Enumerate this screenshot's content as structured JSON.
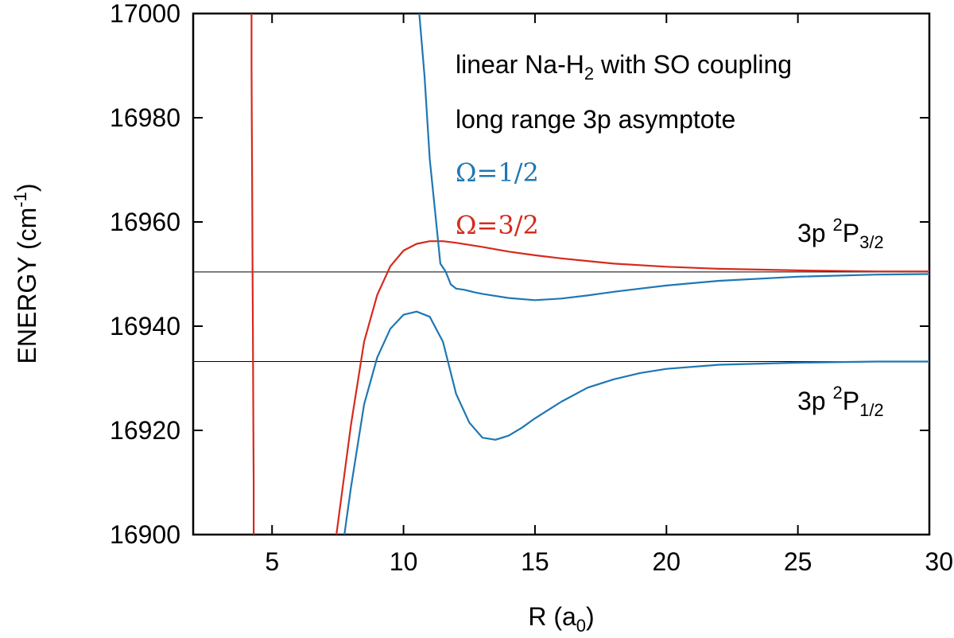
{
  "chart_data": {
    "type": "line",
    "title": "",
    "xlabel": "R (a",
    "xlabel_sub": "0",
    "xlabel_end": ")",
    "ylabel": "ENERGY (cm",
    "ylabel_sup": "-1",
    "ylabel_end": ")",
    "xlim": [
      2,
      30
    ],
    "ylim": [
      16900,
      17000
    ],
    "xticks": [
      5,
      10,
      15,
      20,
      25,
      30
    ],
    "yticks": [
      16900,
      16920,
      16940,
      16960,
      16980,
      17000
    ],
    "annotations": {
      "line1_a": "linear Na-H",
      "line1_sub": "2",
      "line1_b": " with SO coupling",
      "line2": "long range 3p asymptote",
      "omega_half": "Ω=1/2",
      "omega_threehalf": "Ω=3/2",
      "p32_a": "3p ",
      "p32_sup": "2",
      "p32_b": "P",
      "p32_sub": "3/2",
      "p12_a": "3p ",
      "p12_sup": "2",
      "p12_b": "P",
      "p12_sub": "1/2"
    },
    "reference_lines": [
      {
        "name": "3p 2P3/2 asymptote",
        "y": 16950.4,
        "color": "#000000"
      },
      {
        "name": "3p 2P1/2 asymptote",
        "y": 16933.2,
        "color": "#000000"
      }
    ],
    "series": [
      {
        "name": "Omega=3/2 repulsive wall",
        "color": "#d62a1e",
        "x": [
          4.22,
          4.22,
          4.23,
          4.24,
          4.25,
          4.26,
          4.27,
          4.28,
          4.29,
          4.3,
          4.3
        ],
        "y": [
          17000,
          16990,
          16980,
          16970,
          16960,
          16950,
          16940,
          16930,
          16920,
          16910,
          16900
        ]
      },
      {
        "name": "Omega=3/2",
        "color": "#d62a1e",
        "x": [
          7.45,
          7.5,
          8.0,
          8.5,
          9.0,
          9.5,
          10.0,
          10.5,
          11.0,
          11.5,
          12.0,
          13.0,
          14.0,
          15.0,
          16.0,
          17.0,
          18.0,
          20.0,
          22.0,
          25.0,
          28.0,
          30.0
        ],
        "y": [
          16900,
          16902,
          16921,
          16937,
          16946,
          16951.5,
          16954.5,
          16955.8,
          16956.3,
          16956.3,
          16956.0,
          16955.2,
          16954.3,
          16953.6,
          16953.0,
          16952.5,
          16952.0,
          16951.4,
          16951.0,
          16950.7,
          16950.5,
          16950.5
        ]
      },
      {
        "name": "Omega=1/2 upper",
        "color": "#1f77b4",
        "x": [
          10.6,
          10.8,
          11.0,
          11.2,
          11.4,
          11.6,
          11.8,
          12.0,
          12.3,
          12.7,
          13.0,
          14.0,
          15.0,
          16.0,
          17.0,
          18.0,
          19.0,
          20.0,
          22.0,
          25.0,
          28.0,
          30.0
        ],
        "y": [
          17000,
          16988,
          16972,
          16962,
          16952,
          16950.5,
          16948,
          16947.2,
          16947,
          16946.5,
          16946.2,
          16945.4,
          16945.0,
          16945.3,
          16945.9,
          16946.6,
          16947.2,
          16947.8,
          16948.7,
          16949.5,
          16949.9,
          16950.0
        ]
      },
      {
        "name": "Omega=1/2 lower",
        "color": "#1f77b4",
        "x": [
          7.75,
          8.0,
          8.5,
          9.0,
          9.5,
          10.0,
          10.5,
          11.0,
          11.5,
          12.0,
          12.5,
          13.0,
          13.5,
          14.0,
          14.5,
          15.0,
          16.0,
          17.0,
          18.0,
          19.0,
          20.0,
          22.0,
          25.0,
          28.0,
          30.0
        ],
        "y": [
          16900,
          16909,
          16925,
          16934,
          16939.5,
          16942.2,
          16942.8,
          16941.8,
          16937,
          16927,
          16921.5,
          16918.6,
          16918.2,
          16919,
          16920.5,
          16922.3,
          16925.5,
          16928.2,
          16929.8,
          16931,
          16931.8,
          16932.6,
          16933.0,
          16933.2,
          16933.2
        ]
      }
    ]
  }
}
